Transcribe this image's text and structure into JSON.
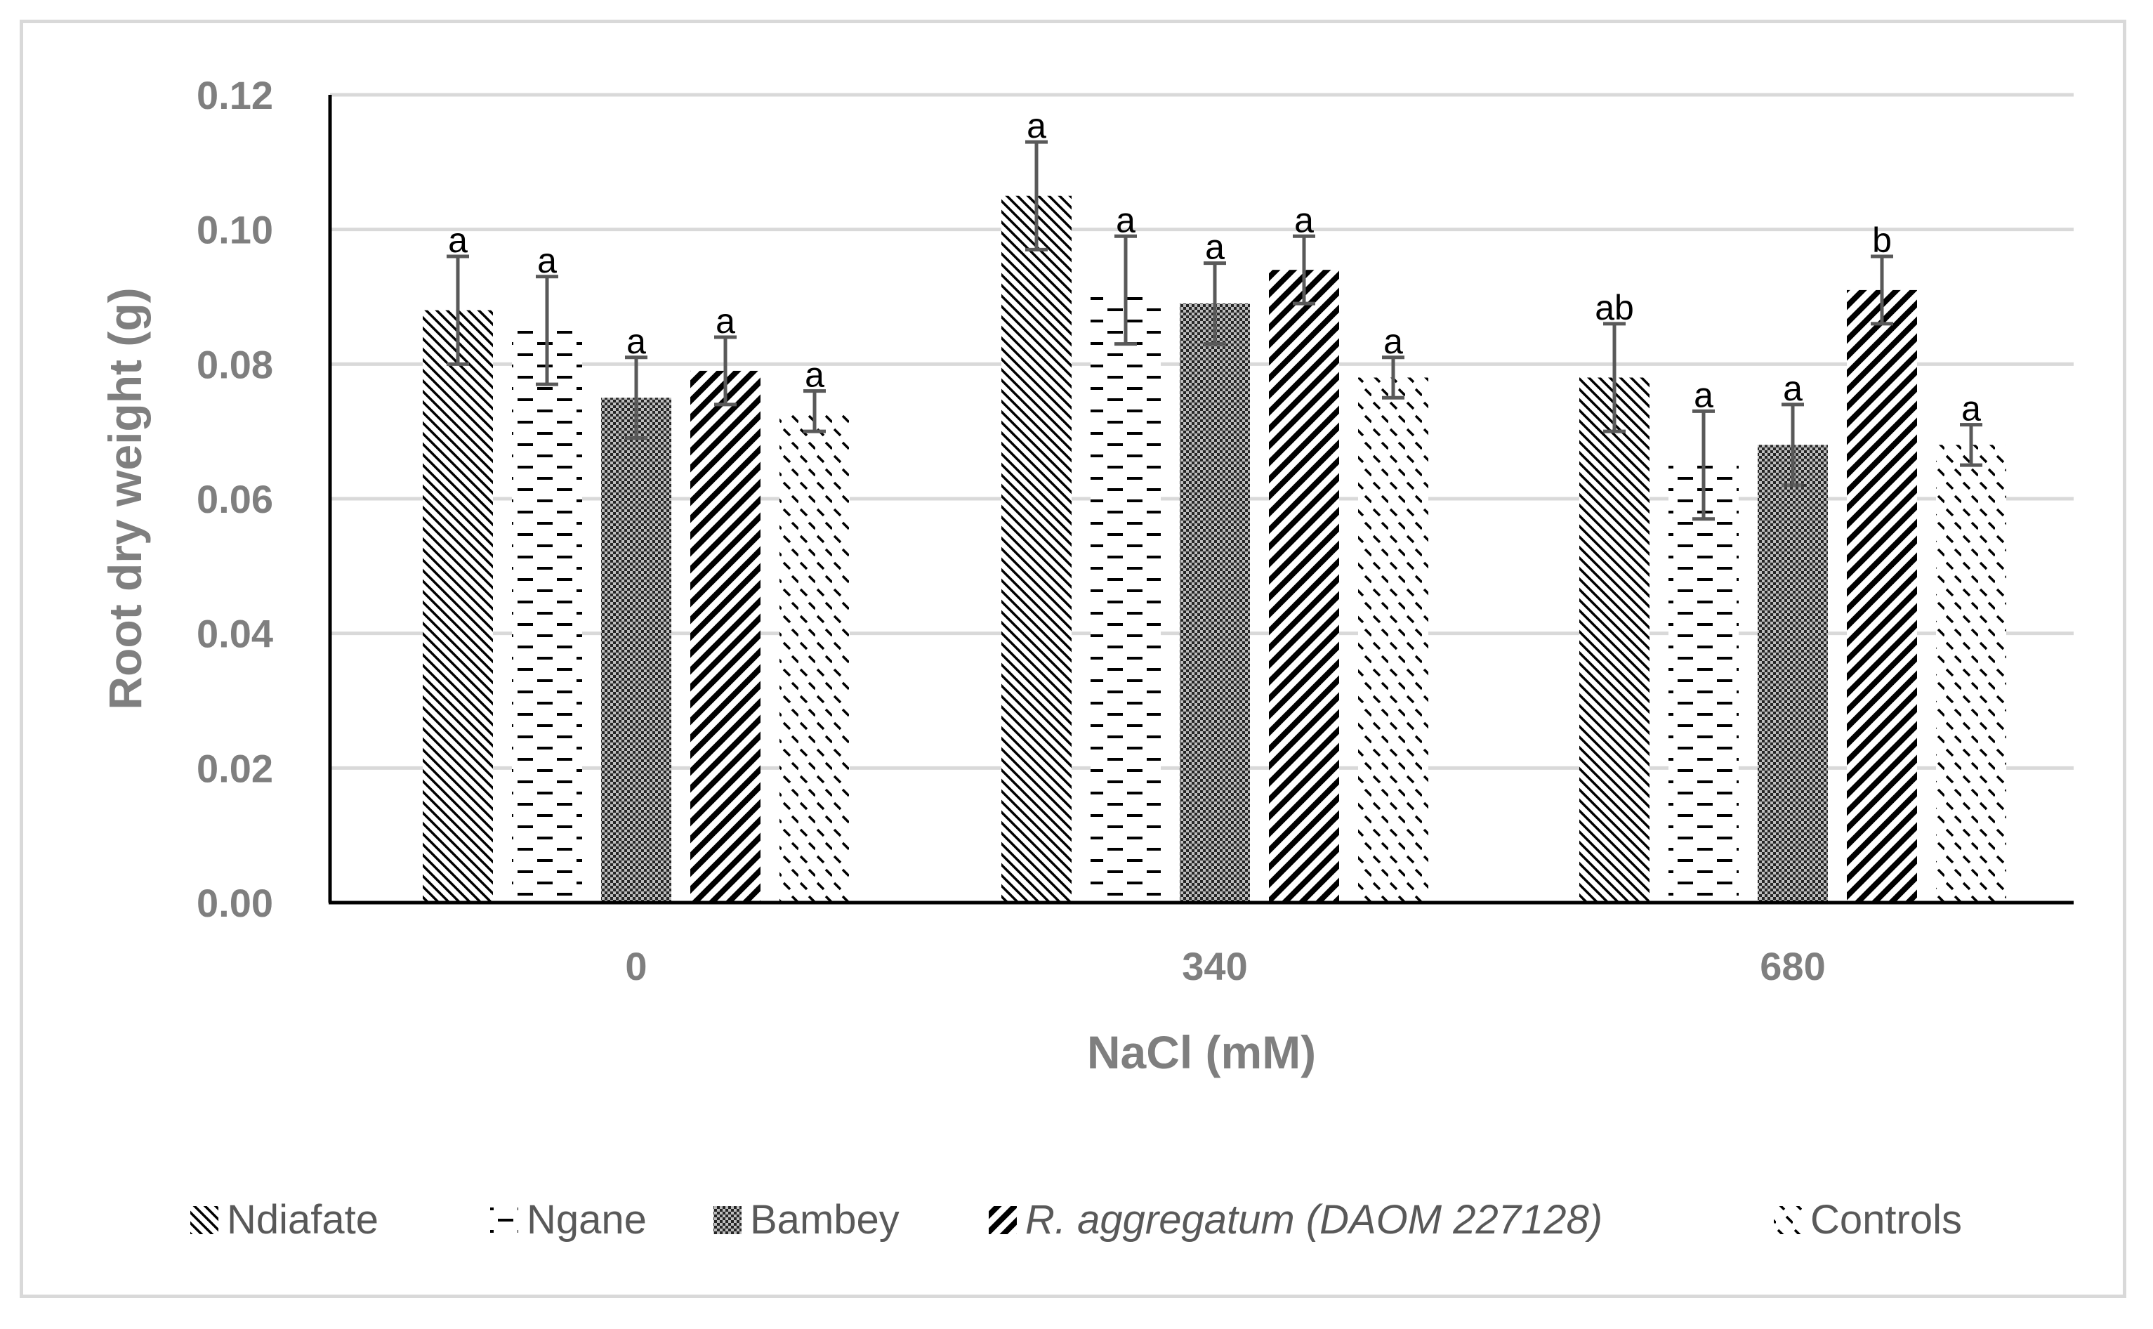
{
  "chart_data": {
    "type": "bar",
    "title": "",
    "xlabel": "NaCl (mM)",
    "ylabel": "Root dry weight (g)",
    "ylim": [
      0,
      0.12
    ],
    "yticks": [
      "0.00",
      "0.02",
      "0.04",
      "0.06",
      "0.08",
      "0.10",
      "0.12"
    ],
    "categories": [
      "0",
      "340",
      "680"
    ],
    "grid": true,
    "legend_position": "bottom",
    "series": [
      {
        "name": "Ndiafate",
        "italic": false,
        "pattern": "diag-down",
        "values": [
          0.088,
          0.105,
          0.078
        ],
        "errors": [
          0.008,
          0.008,
          0.008
        ],
        "letters": [
          "a",
          "a",
          "ab"
        ]
      },
      {
        "name": "Ngane",
        "italic": false,
        "pattern": "dashes",
        "values": [
          0.085,
          0.091,
          0.065
        ],
        "errors": [
          0.008,
          0.008,
          0.008
        ],
        "letters": [
          "a",
          "a",
          "a"
        ]
      },
      {
        "name": "Bambey",
        "italic": false,
        "pattern": "checker",
        "values": [
          0.075,
          0.089,
          0.068
        ],
        "errors": [
          0.006,
          0.006,
          0.006
        ],
        "letters": [
          "a",
          "a",
          "a"
        ]
      },
      {
        "name": "R. aggregatum (DAOM 227128)",
        "italic": true,
        "pattern": "diag-up",
        "values": [
          0.079,
          0.094,
          0.091
        ],
        "errors": [
          0.005,
          0.005,
          0.005
        ],
        "letters": [
          "a",
          "a",
          "b"
        ]
      },
      {
        "name": "Controls",
        "italic": false,
        "pattern": "small-dash",
        "values": [
          0.073,
          0.078,
          0.068
        ],
        "errors": [
          0.003,
          0.003,
          0.003
        ],
        "letters": [
          "a",
          "a",
          "a"
        ]
      }
    ]
  }
}
